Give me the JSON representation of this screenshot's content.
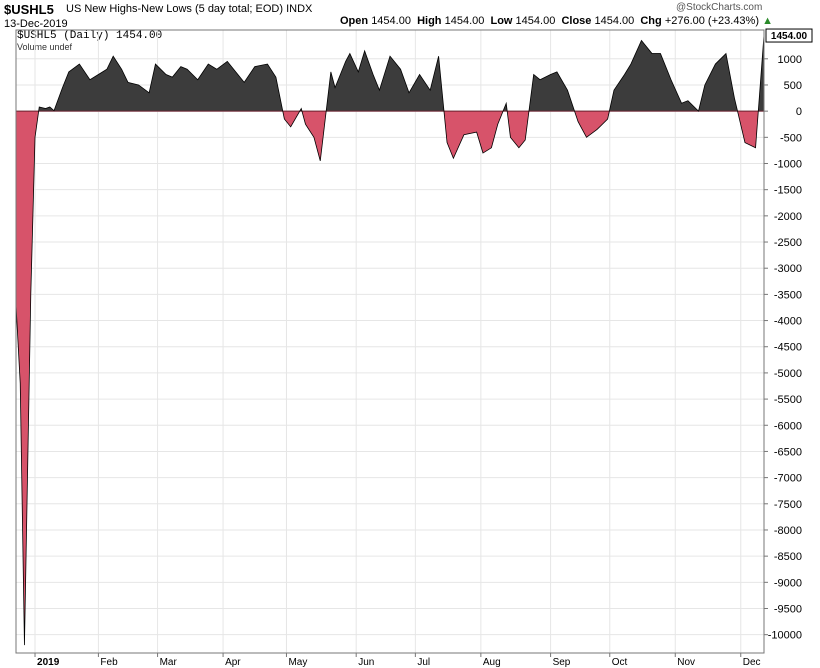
{
  "header": {
    "symbol": "$USHL5",
    "description": "US New Highs-New Lows (5 day total; EOD)",
    "exchange": "INDX",
    "date": "13-Dec-2019",
    "open_label": "Open",
    "open": "1454.00",
    "high_label": "High",
    "high": "1454.00",
    "low_label": "Low",
    "low": "1454.00",
    "close_label": "Close",
    "close": "1454.00",
    "chg_label": "Chg",
    "chg": "+276.00 (+23.43%)",
    "chg_arrow": "▲",
    "watermark": "@StockCharts.com"
  },
  "legend": {
    "series": "$USHL5 (Daily) 1454.00",
    "volume": "Volume undef"
  },
  "chart_data": {
    "type": "area",
    "colors": {
      "positive": "#3c3c3c",
      "negative": "#d7536a",
      "line": "#000000"
    },
    "ylim": [
      -10350,
      1550
    ],
    "yticks": [
      1000,
      500,
      0,
      -500,
      -1000,
      -1500,
      -2000,
      -2500,
      -3000,
      -3500,
      -4000,
      -4500,
      -5000,
      -5500,
      -6000,
      -6500,
      -7000,
      -7500,
      -8000,
      -8500,
      -9000,
      -9500,
      -10000
    ],
    "ytick_labels": [
      "1000",
      "500",
      "0",
      "-500",
      "-1000",
      "-1500",
      "-2000",
      "-2500",
      "-3000",
      "-3500",
      "-4000",
      "-4500",
      "-5000",
      "-5500",
      "-6000",
      "-6500",
      "-7000",
      "-7500",
      "-8000",
      "-8500",
      "-9000",
      "-9500",
      "-10000"
    ],
    "last_value_label": "1454.00",
    "last_value": 1454,
    "xlim": [
      "2018-12-24",
      "2019-12-13"
    ],
    "xticks": [
      {
        "date": "2019-01-02",
        "label": "2019",
        "bold": true
      },
      {
        "date": "2019-02-01",
        "label": "Feb"
      },
      {
        "date": "2019-03-01",
        "label": "Mar"
      },
      {
        "date": "2019-04-01",
        "label": "Apr"
      },
      {
        "date": "2019-05-01",
        "label": "May"
      },
      {
        "date": "2019-06-03",
        "label": "Jun"
      },
      {
        "date": "2019-07-01",
        "label": "Jul"
      },
      {
        "date": "2019-08-01",
        "label": "Aug"
      },
      {
        "date": "2019-09-03",
        "label": "Sep"
      },
      {
        "date": "2019-10-01",
        "label": "Oct"
      },
      {
        "date": "2019-11-01",
        "label": "Nov"
      },
      {
        "date": "2019-12-02",
        "label": "Dec"
      }
    ],
    "series": [
      {
        "x": [
          "2018-12-24",
          "2018-12-26",
          "2018-12-28",
          "2018-12-31",
          "2019-01-02",
          "2019-01-04",
          "2019-01-07",
          "2019-01-09",
          "2019-01-11",
          "2019-01-15",
          "2019-01-18",
          "2019-01-23",
          "2019-01-28",
          "2019-02-01",
          "2019-02-05",
          "2019-02-08",
          "2019-02-12",
          "2019-02-15",
          "2019-02-20",
          "2019-02-25",
          "2019-02-28",
          "2019-03-05",
          "2019-03-08",
          "2019-03-12",
          "2019-03-15",
          "2019-03-20",
          "2019-03-25",
          "2019-03-29",
          "2019-04-03",
          "2019-04-08",
          "2019-04-11",
          "2019-04-16",
          "2019-04-22",
          "2019-04-26",
          "2019-04-30",
          "2019-05-03",
          "2019-05-08",
          "2019-05-10",
          "2019-05-14",
          "2019-05-17",
          "2019-05-22",
          "2019-05-24",
          "2019-05-29",
          "2019-05-31",
          "2019-06-04",
          "2019-06-07",
          "2019-06-11",
          "2019-06-14",
          "2019-06-19",
          "2019-06-24",
          "2019-06-28",
          "2019-07-03",
          "2019-07-08",
          "2019-07-12",
          "2019-07-16",
          "2019-07-19",
          "2019-07-24",
          "2019-07-30",
          "2019-08-02",
          "2019-08-06",
          "2019-08-09",
          "2019-08-13",
          "2019-08-15",
          "2019-08-19",
          "2019-08-22",
          "2019-08-26",
          "2019-08-29",
          "2019-09-03",
          "2019-09-06",
          "2019-09-11",
          "2019-09-16",
          "2019-09-20",
          "2019-09-25",
          "2019-09-30",
          "2019-10-03",
          "2019-10-08",
          "2019-10-11",
          "2019-10-16",
          "2019-10-21",
          "2019-10-25",
          "2019-10-30",
          "2019-11-04",
          "2019-11-07",
          "2019-11-12",
          "2019-11-15",
          "2019-11-20",
          "2019-11-25",
          "2019-11-29",
          "2019-12-04",
          "2019-12-09",
          "2019-12-13"
        ],
        "y": [
          -3700,
          -5200,
          -10200,
          -3500,
          -500,
          80,
          50,
          80,
          10,
          450,
          750,
          900,
          600,
          700,
          800,
          1050,
          800,
          550,
          500,
          350,
          900,
          700,
          650,
          850,
          800,
          600,
          900,
          800,
          950,
          700,
          550,
          850,
          900,
          650,
          -150,
          -300,
          50,
          -250,
          -500,
          -950,
          750,
          450,
          950,
          1100,
          750,
          1150,
          700,
          400,
          1050,
          800,
          350,
          700,
          400,
          1050,
          -600,
          -900,
          -450,
          -400,
          -800,
          -700,
          -250,
          150,
          -500,
          -700,
          -550,
          700,
          600,
          700,
          750,
          400,
          -200,
          -500,
          -350,
          -150,
          400,
          700,
          900,
          1350,
          1100,
          1100,
          600,
          150,
          200,
          0,
          500,
          900,
          1100,
          250,
          -600,
          -700,
          1454
        ]
      }
    ]
  }
}
